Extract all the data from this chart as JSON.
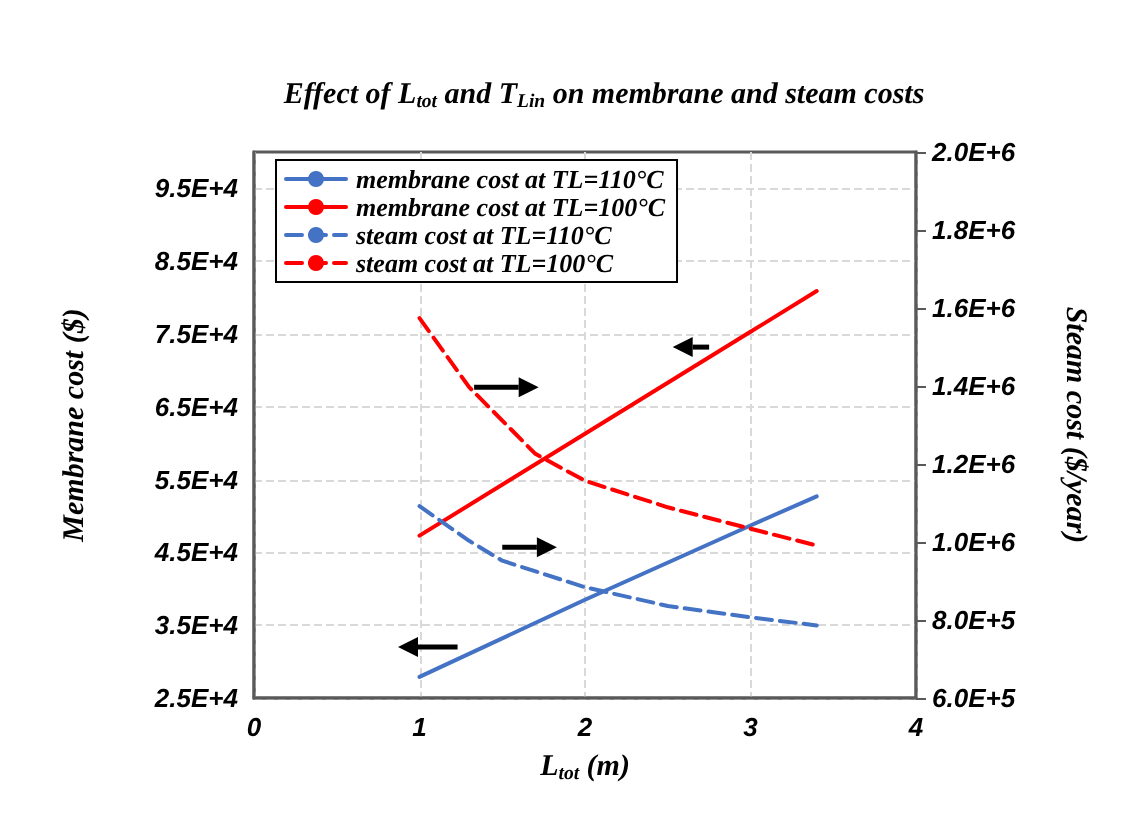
{
  "chart_data": {
    "type": "line",
    "title": "Effect of L$_{tot}$ and T$_{Lin}$ on membrane and steam costs",
    "xlabel": "L$_{tot}$ (m)",
    "ylabel": "Membrane cost ($)",
    "y2label": "Steam cost ($/year)",
    "xlim": [
      0,
      4
    ],
    "xticks": [
      0,
      1,
      2,
      3,
      4
    ],
    "ylim": [
      25000,
      100000
    ],
    "yticks": [
      {
        "value": 25000,
        "label": "2.5E+4"
      },
      {
        "value": 35000,
        "label": "3.5E+4"
      },
      {
        "value": 45000,
        "label": "4.5E+4"
      },
      {
        "value": 55000,
        "label": "5.5E+4"
      },
      {
        "value": 65000,
        "label": "6.5E+4"
      },
      {
        "value": 75000,
        "label": "7.5E+4"
      },
      {
        "value": 85000,
        "label": "8.5E+4"
      },
      {
        "value": 95000,
        "label": "9.5E+4"
      }
    ],
    "y2lim": [
      600000,
      2000000
    ],
    "y2ticks": [
      {
        "value": 600000,
        "label": "6.0E+5"
      },
      {
        "value": 800000,
        "label": "8.0E+5"
      },
      {
        "value": 1000000,
        "label": "1.0E+6"
      },
      {
        "value": 1200000,
        "label": "1.2E+6"
      },
      {
        "value": 1400000,
        "label": "1.4E+6"
      },
      {
        "value": 1600000,
        "label": "1.6E+6"
      },
      {
        "value": 1800000,
        "label": "1.8E+6"
      },
      {
        "value": 2000000,
        "label": "2.0E+6"
      }
    ],
    "grid": true,
    "legend": "top left",
    "marker": "none",
    "series": [
      {
        "name": "membrane cost at TL=110°C",
        "color": "#4472c4",
        "line_style": "solid",
        "x": [
          1,
          2,
          3,
          3.4
        ],
        "values": [
          27900,
          38500,
          48700,
          52700
        ]
      },
      {
        "name": "membrane cost at TL=100°C",
        "color": "#ff0000",
        "line_style": "solid",
        "x": [
          1,
          2,
          3,
          3.4
        ],
        "values": [
          47300,
          61300,
          75300,
          80900
        ]
      },
      {
        "name": "steam cost at TL=110°C",
        "color": "#4472c4",
        "line_style": "dashed",
        "axis": "y2",
        "x": [
          1,
          1.3,
          1.5,
          2,
          2.5,
          3,
          3.4
        ],
        "values": [
          1092000,
          1003000,
          952000,
          884000,
          836000,
          807000,
          786000
        ]
      },
      {
        "name": "steam cost at TL=100°C",
        "color": "#ff0000",
        "line_style": "dashed",
        "axis": "y2",
        "x": [
          1,
          1.3,
          1.7,
          2,
          2.5,
          3,
          3.4
        ],
        "values": [
          1574000,
          1397000,
          1226000,
          1157000,
          1089000,
          1034000,
          991000
        ]
      }
    ]
  }
}
